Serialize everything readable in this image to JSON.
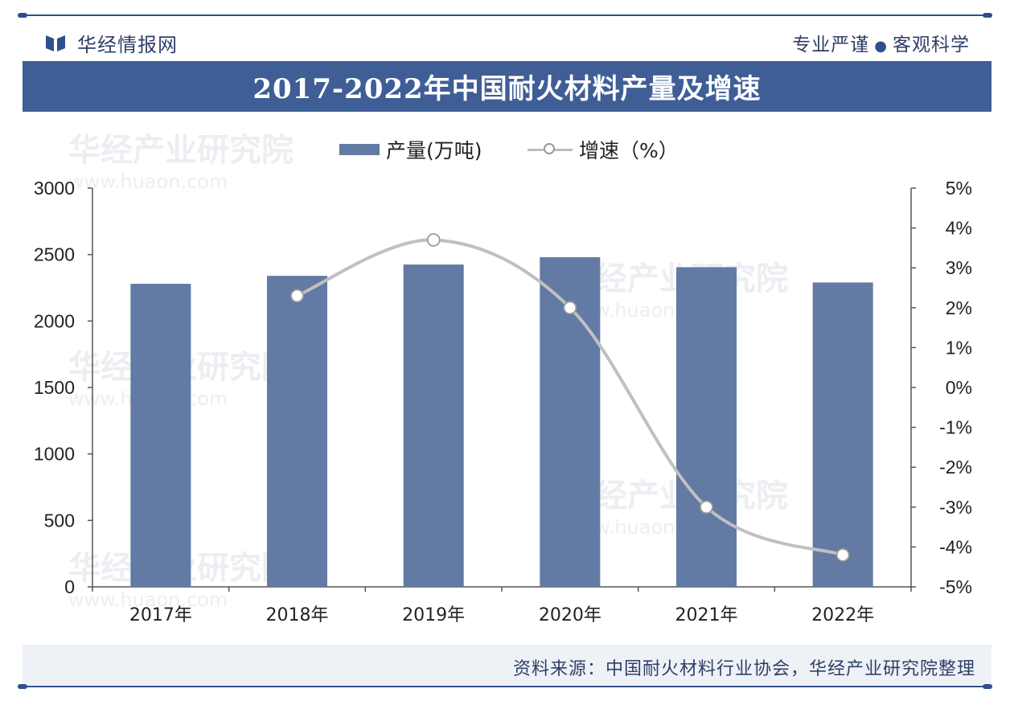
{
  "header": {
    "brand": "华经情报网",
    "slogan_left": "专业严谨",
    "slogan_right": "客观科学"
  },
  "colors": {
    "primary": "#3f5e96",
    "bar": "#627aa4",
    "line": "#c0c0c0",
    "marker_stroke": "#9a9a9a"
  },
  "watermark": {
    "cn": "华经产业研究院",
    "url": "www.huaon.com"
  },
  "source": "资料来源：中国耐火材料行业协会，华经产业研究院整理",
  "chart_data": {
    "type": "bar",
    "title": "2017-2022年中国耐火材料产量及增速",
    "categories": [
      "2017年",
      "2018年",
      "2019年",
      "2020年",
      "2021年",
      "2022年"
    ],
    "series": [
      {
        "name": "产量(万吨)",
        "type": "bar",
        "axis": "left",
        "values": [
          2280,
          2340,
          2425,
          2480,
          2405,
          2290
        ]
      },
      {
        "name": "增速（%）",
        "type": "line",
        "axis": "right",
        "values": [
          null,
          2.3,
          3.7,
          2.0,
          -3.0,
          -4.2
        ]
      }
    ],
    "y_left": {
      "min": 0,
      "max": 3000,
      "ticks": [
        "0",
        "500",
        "1000",
        "1500",
        "2000",
        "2500",
        "3000"
      ]
    },
    "y_right": {
      "min": -5,
      "max": 5,
      "ticks": [
        "-5%",
        "-4%",
        "-3%",
        "-2%",
        "-1%",
        "0%",
        "1%",
        "2%",
        "3%",
        "4%",
        "5%"
      ]
    },
    "legend_position": "top-center",
    "grid": false
  }
}
